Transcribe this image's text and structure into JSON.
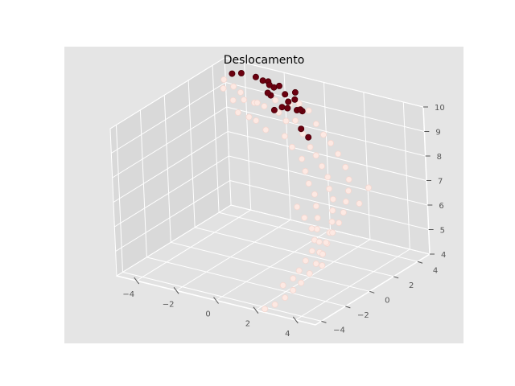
{
  "chart_data": {
    "type": "scatter",
    "title": "Deslocamento",
    "xlabel": "",
    "ylabel": "",
    "zlabel": "",
    "xlim": [
      -5,
      5
    ],
    "ylim": [
      -4.5,
      5
    ],
    "zlim": [
      4,
      10
    ],
    "x_ticks": [
      "−4",
      "−2",
      "0",
      "2",
      "4"
    ],
    "y_ticks": [
      "−4",
      "−2",
      "0",
      "2",
      "4"
    ],
    "z_ticks": [
      "4",
      "5",
      "6",
      "7",
      "8",
      "9",
      "10"
    ],
    "grid": true,
    "colors": {
      "pane": "#e5e5e5",
      "grid": "#ffffff",
      "light_point": "#fde9e3",
      "dark_point": "#6b0010",
      "dark_point_edge": "#4a0008"
    },
    "series": [
      {
        "points": [
          [
            -4.2,
            3.6,
            9.7
          ],
          [
            -4.0,
            3.2,
            9.5
          ],
          [
            -3.6,
            3.4,
            9.6
          ],
          [
            -3.0,
            3.0,
            9.6
          ],
          [
            -2.6,
            2.6,
            9.5
          ],
          [
            -2.2,
            2.8,
            9.4
          ],
          [
            -1.8,
            2.4,
            9.6
          ],
          [
            -1.2,
            2.0,
            9.7
          ],
          [
            -0.6,
            2.2,
            9.5
          ],
          [
            0.0,
            1.8,
            9.4
          ],
          [
            0.6,
            1.6,
            9.6
          ],
          [
            1.2,
            1.2,
            9.3
          ],
          [
            1.8,
            0.8,
            9.0
          ],
          [
            2.2,
            0.6,
            8.8
          ],
          [
            2.6,
            0.4,
            8.5
          ],
          [
            3.0,
            0.2,
            8.2
          ],
          [
            3.3,
            -0.2,
            7.9
          ],
          [
            3.6,
            -0.4,
            7.6
          ],
          [
            3.8,
            -0.8,
            7.3
          ],
          [
            4.0,
            -1.2,
            7.0
          ],
          [
            4.1,
            -1.6,
            6.7
          ],
          [
            4.2,
            -2.0,
            6.4
          ],
          [
            4.2,
            -2.4,
            6.1
          ],
          [
            4.1,
            -2.8,
            5.8
          ],
          [
            4.0,
            -3.2,
            5.5
          ],
          [
            3.8,
            -3.6,
            5.2
          ],
          [
            3.5,
            -3.8,
            4.9
          ],
          [
            3.2,
            -4.0,
            4.6
          ],
          [
            2.8,
            -4.2,
            4.3
          ],
          [
            2.4,
            -4.4,
            4.1
          ],
          [
            -3.4,
            3.0,
            9.2
          ],
          [
            -2.8,
            2.4,
            9.0
          ],
          [
            -2.0,
            2.0,
            9.1
          ],
          [
            -1.4,
            1.6,
            9.2
          ],
          [
            -0.8,
            1.4,
            9.0
          ],
          [
            0.4,
            1.0,
            9.1
          ],
          [
            1.0,
            0.6,
            8.9
          ],
          [
            1.6,
            0.4,
            8.6
          ],
          [
            2.0,
            0.0,
            8.3
          ],
          [
            2.4,
            -0.4,
            8.0
          ],
          [
            2.8,
            -0.6,
            7.7
          ],
          [
            3.1,
            -1.0,
            7.4
          ],
          [
            3.4,
            -1.4,
            7.1
          ],
          [
            3.6,
            -1.8,
            6.8
          ],
          [
            3.7,
            -2.2,
            6.5
          ],
          [
            3.8,
            -2.6,
            6.2
          ],
          [
            3.7,
            -3.0,
            5.9
          ],
          [
            3.6,
            -3.4,
            5.6
          ],
          [
            3.4,
            -3.6,
            5.3
          ],
          [
            3.0,
            -3.8,
            5.0
          ],
          [
            0.8,
            2.4,
            9.8
          ],
          [
            1.4,
            2.0,
            9.5
          ],
          [
            2.0,
            1.6,
            9.3
          ],
          [
            2.6,
            1.2,
            9.2
          ],
          [
            3.2,
            0.8,
            9.0
          ],
          [
            3.8,
            0.4,
            8.7
          ],
          [
            4.2,
            0.0,
            8.4
          ],
          [
            4.4,
            -0.4,
            8.1
          ],
          [
            4.5,
            -0.8,
            7.8
          ],
          [
            4.6,
            -1.2,
            7.5
          ],
          [
            4.6,
            -1.6,
            7.2
          ],
          [
            4.5,
            -2.0,
            6.9
          ],
          [
            4.4,
            -2.4,
            6.6
          ],
          [
            4.3,
            -2.8,
            6.3
          ],
          [
            1.0,
            0.8,
            6.4
          ],
          [
            1.6,
            0.4,
            6.2
          ],
          [
            2.2,
            0.0,
            6.0
          ],
          [
            2.8,
            -0.4,
            5.7
          ],
          [
            3.2,
            -0.8,
            5.4
          ],
          [
            3.4,
            -1.2,
            5.1
          ],
          [
            -1.0,
            2.6,
            9.8
          ],
          [
            -0.4,
            2.8,
            9.7
          ],
          [
            0.2,
            2.6,
            9.9
          ],
          [
            4.8,
            0.6,
            8.0
          ],
          [
            4.8,
            -0.2,
            7.6
          ]
        ]
      },
      {
        "points": [
          [
            -3.8,
            4.4,
            9.8
          ],
          [
            -3.2,
            4.6,
            9.7
          ],
          [
            -2.6,
            4.2,
            9.8
          ],
          [
            -2.2,
            4.0,
            9.9
          ],
          [
            -1.8,
            3.8,
            9.8
          ],
          [
            -1.4,
            3.6,
            10.0
          ],
          [
            -1.0,
            3.4,
            9.8
          ],
          [
            -0.6,
            3.0,
            9.7
          ],
          [
            -0.8,
            2.8,
            9.5
          ],
          [
            -0.4,
            2.6,
            9.6
          ],
          [
            -0.2,
            2.9,
            9.9
          ],
          [
            0.2,
            2.4,
            9.7
          ],
          [
            0.6,
            2.2,
            9.8
          ],
          [
            1.0,
            1.4,
            9.4
          ],
          [
            1.6,
            1.0,
            9.3
          ],
          [
            -2.4,
            4.4,
            9.6
          ],
          [
            -4.4,
            4.6,
            9.6
          ],
          [
            -1.2,
            2.8,
            9.3
          ],
          [
            -0.6,
            3.6,
            9.9
          ],
          [
            0.0,
            3.0,
            9.5
          ],
          [
            -1.6,
            3.2,
            9.7
          ],
          [
            -2.0,
            3.6,
            9.6
          ]
        ]
      }
    ]
  }
}
